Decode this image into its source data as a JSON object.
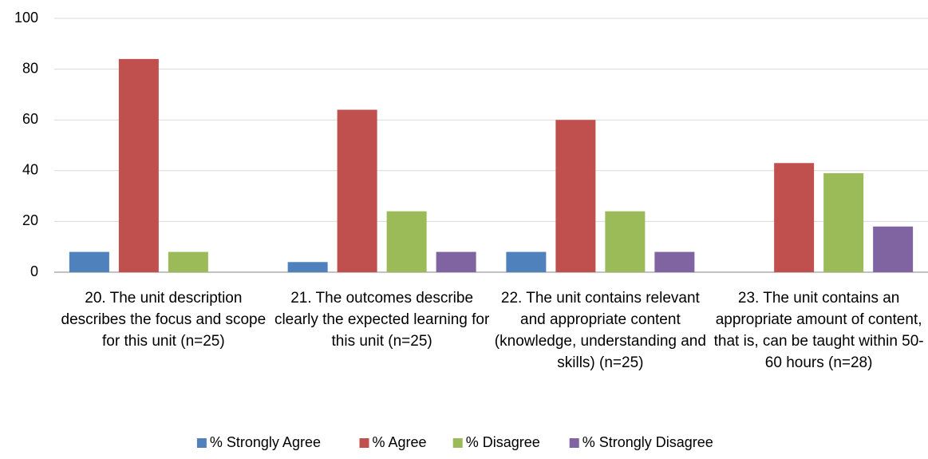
{
  "chart_data": {
    "type": "bar",
    "categories": [
      "20. The unit description describes the focus and scope for this unit (n=25)",
      "21. The outcomes describe clearly the expected learning for this unit (n=25)",
      "22. The unit contains relevant and appropriate content (knowledge, understanding and skills) (n=25)",
      "23. The unit contains an appropriate amount of content, that is, can be taught within 50-60 hours (n=28)"
    ],
    "series": [
      {
        "name": "% Strongly Agree",
        "color": "#4f81bd",
        "values": [
          8,
          4,
          8,
          0
        ]
      },
      {
        "name": "% Agree",
        "color": "#c0504d",
        "values": [
          84,
          64,
          60,
          43
        ]
      },
      {
        "name": "% Disagree",
        "color": "#9bbb59",
        "values": [
          8,
          24,
          24,
          39
        ]
      },
      {
        "name": "% Strongly Disagree",
        "color": "#8064a2",
        "values": [
          0,
          8,
          8,
          18
        ]
      }
    ],
    "ylim": [
      0,
      100
    ],
    "yticks": [
      0,
      20,
      40,
      60,
      80,
      100
    ],
    "grid": true,
    "legend": "bottom"
  }
}
